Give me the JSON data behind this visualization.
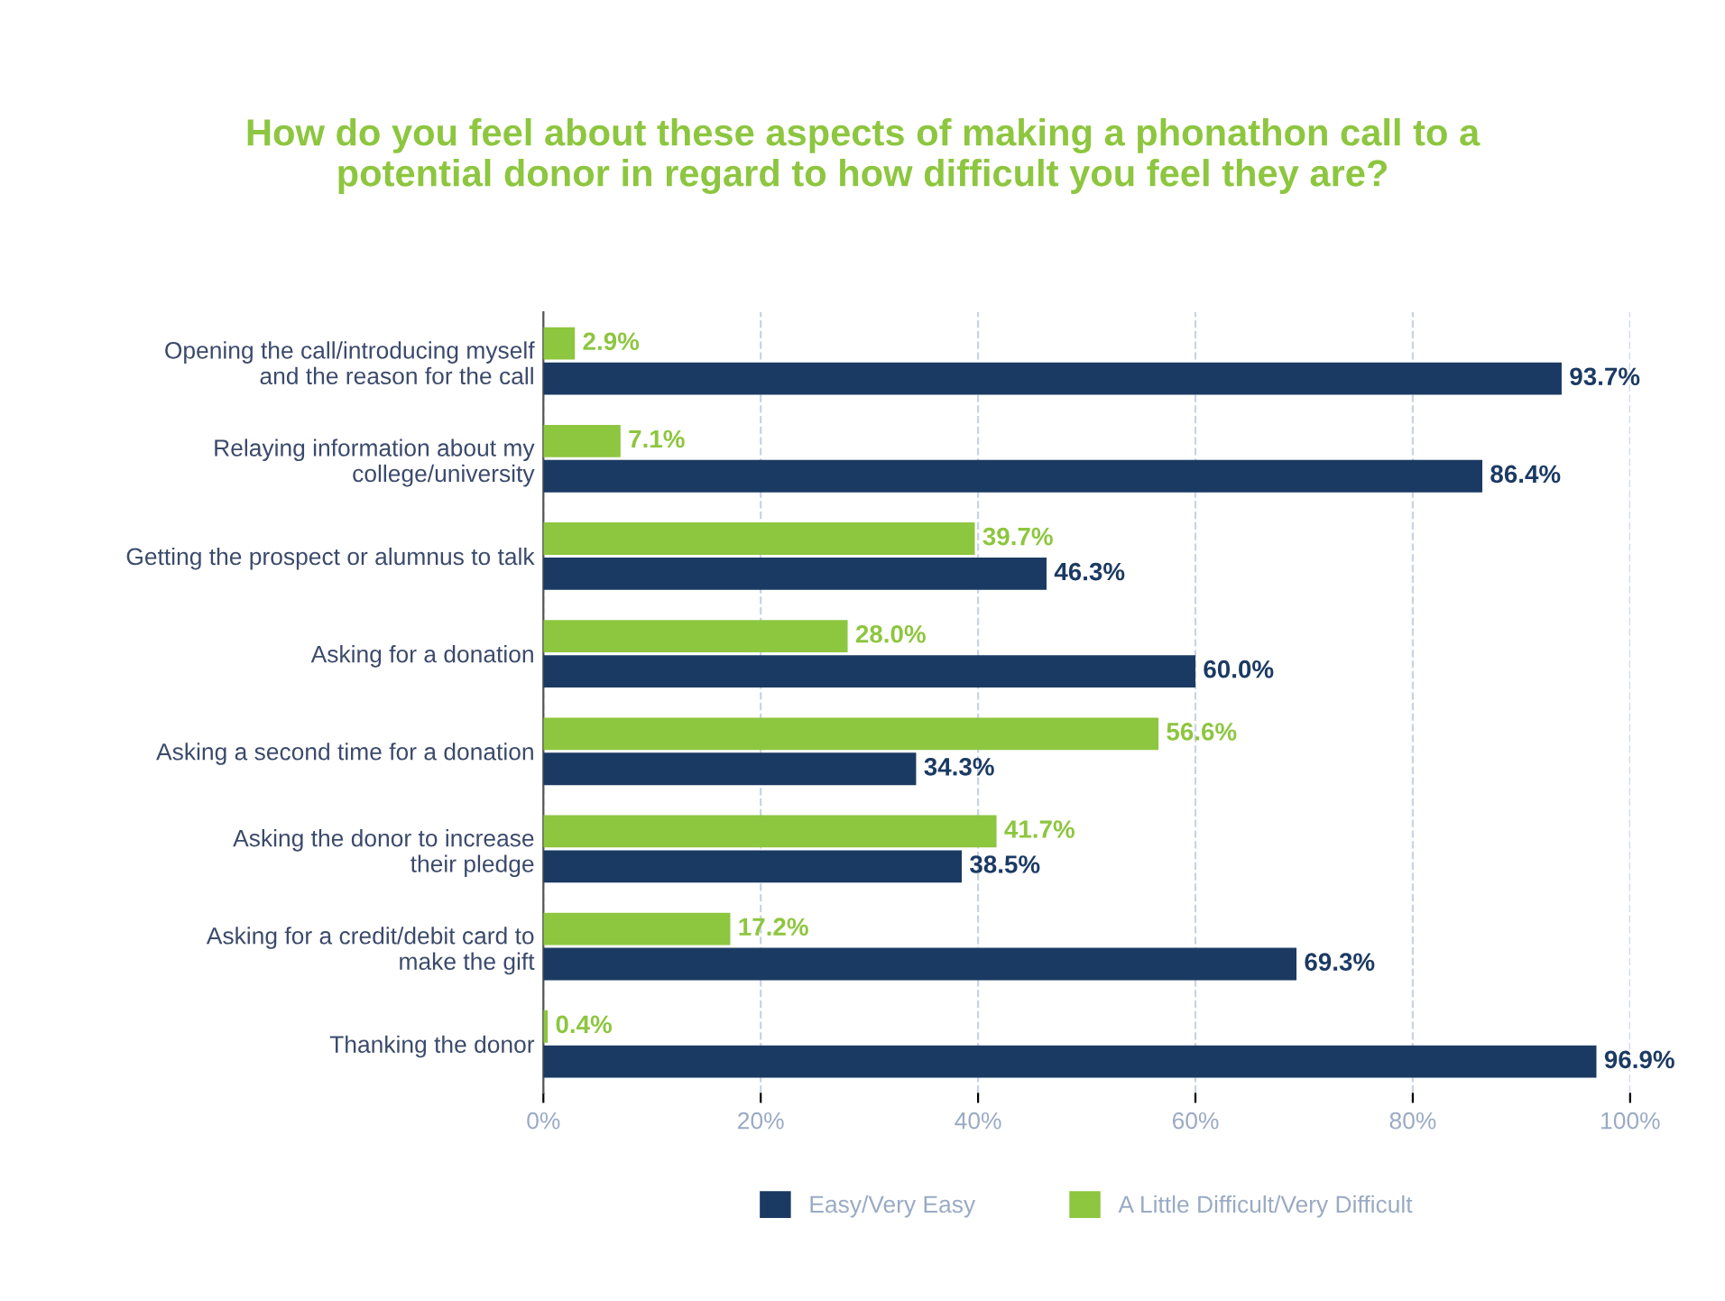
{
  "chart_data": {
    "type": "bar",
    "orientation": "horizontal",
    "title": "How do you feel about these aspects of making a phonathon call to a\npotential donor in regard to how difficult you feel they are?",
    "categories": [
      "Opening the call/introducing myself\nand the reason for the call",
      "Relaying information about my\ncollege/university",
      "Getting the prospect or alumnus to talk",
      "Asking for a donation",
      "Asking a second time for a donation",
      "Asking the donor to increase\ntheir pledge",
      "Asking for a credit/debit card to\nmake the gift",
      "Thanking the donor"
    ],
    "series": [
      {
        "name": "Easy/Very Easy",
        "color": "#1b3a63",
        "values": [
          93.7,
          86.4,
          46.3,
          60.0,
          34.3,
          38.5,
          69.3,
          96.9
        ],
        "value_labels": [
          "93.7%",
          "86.4%",
          "46.3%",
          "60.0%",
          "34.3%",
          "38.5%",
          "69.3%",
          "96.9%"
        ]
      },
      {
        "name": "A Little Difficult/Very Difficult",
        "color": "#8dc63f",
        "values": [
          2.9,
          7.1,
          39.7,
          28.0,
          56.6,
          41.7,
          17.2,
          0.4
        ],
        "value_labels": [
          "2.9%",
          "7.1%",
          "39.7%",
          "28.0%",
          "56.6%",
          "41.7%",
          "17.2%",
          "0.4%"
        ]
      }
    ],
    "xlim": [
      0,
      100
    ],
    "xticks": [
      {
        "value": 0,
        "label": "0%"
      },
      {
        "value": 20,
        "label": "20%"
      },
      {
        "value": 40,
        "label": "40%"
      },
      {
        "value": 60,
        "label": "60%"
      },
      {
        "value": 80,
        "label": "80%"
      },
      {
        "value": 100,
        "label": "100%"
      }
    ],
    "grid": "x",
    "legend": "bottom"
  }
}
